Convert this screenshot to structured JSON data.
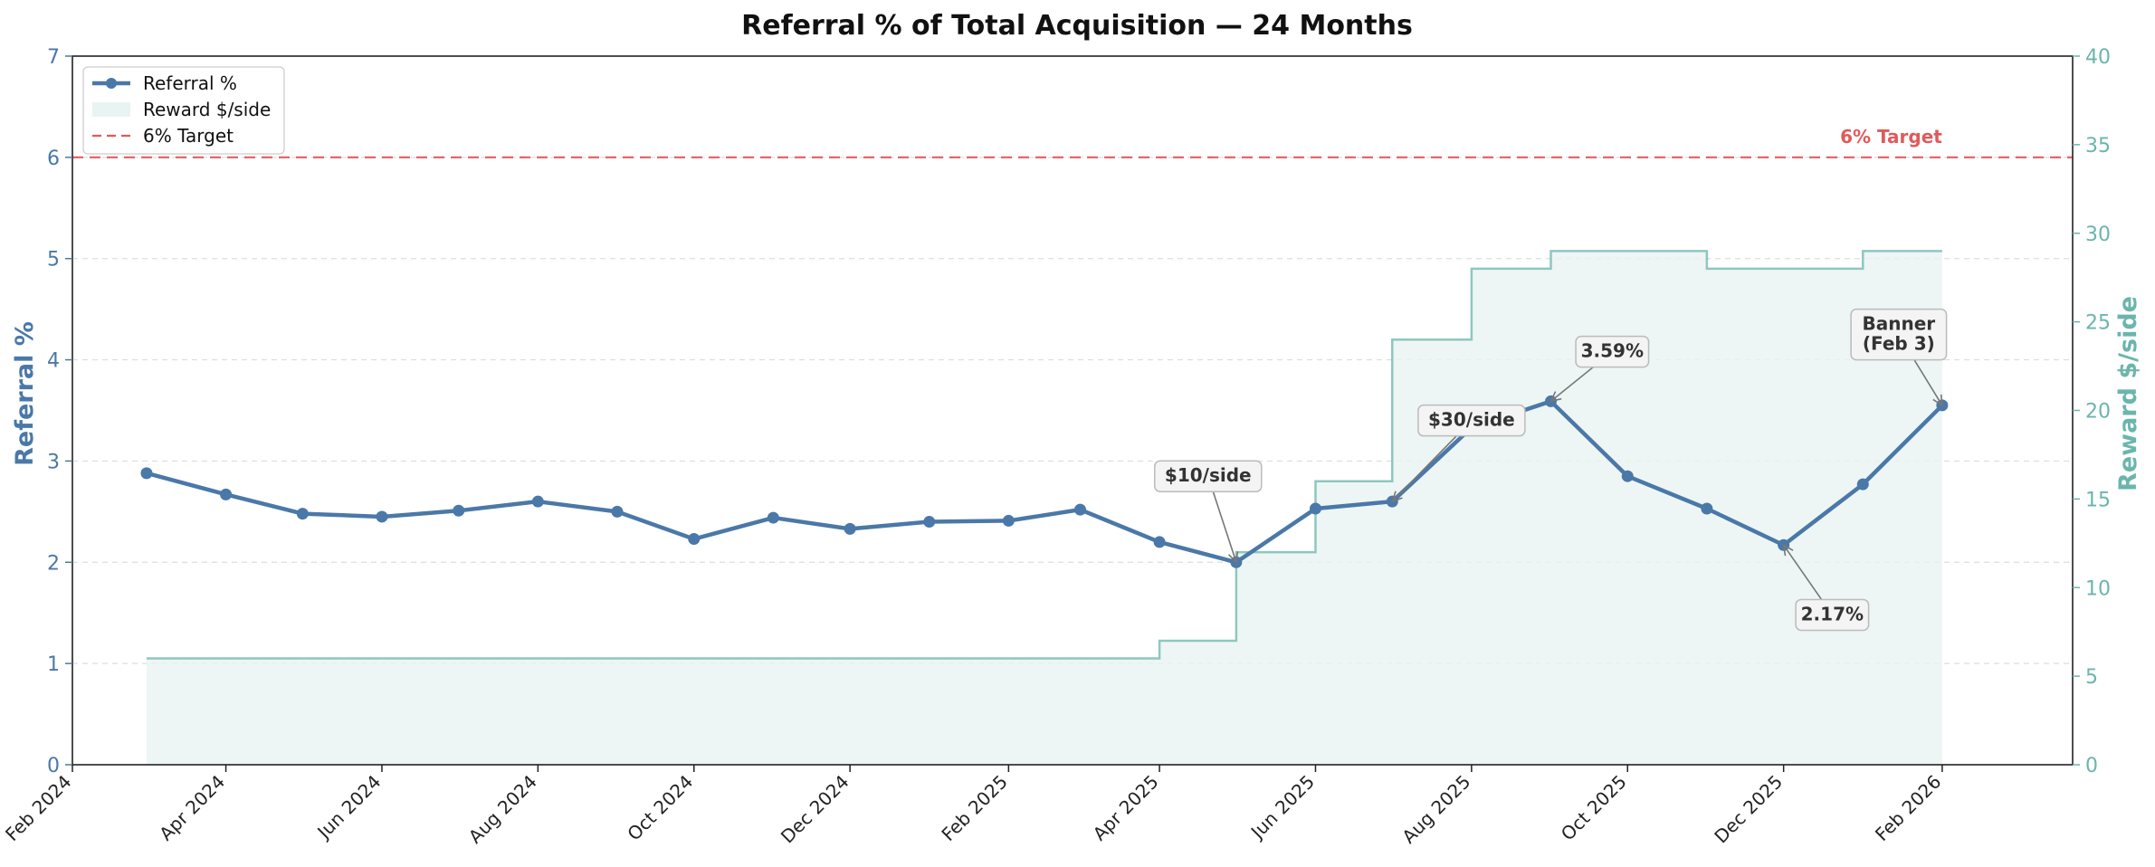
{
  "chart_data": {
    "type": "line",
    "title": "Referral % of Total Acquisition — 24 Months",
    "ylabel": "Referral %",
    "ylabel_right": "Reward $/side",
    "ylim": [
      0,
      7
    ],
    "ylim_right": [
      0,
      40
    ],
    "yticks": [
      "0",
      "1",
      "2",
      "3",
      "4",
      "5",
      "6",
      "7"
    ],
    "yticks_right": [
      "0",
      "5",
      "10",
      "15",
      "20",
      "25",
      "30",
      "35",
      "40"
    ],
    "xlim": [
      "2024-02-01",
      "2026-03-24"
    ],
    "xticks": [
      {
        "date": "2024-02-01",
        "label": "Feb 2024"
      },
      {
        "date": "2024-04-01",
        "label": "Apr 2024"
      },
      {
        "date": "2024-06-01",
        "label": "Jun 2024"
      },
      {
        "date": "2024-08-01",
        "label": "Aug 2024"
      },
      {
        "date": "2024-10-01",
        "label": "Oct 2024"
      },
      {
        "date": "2024-12-01",
        "label": "Dec 2024"
      },
      {
        "date": "2025-02-01",
        "label": "Feb 2025"
      },
      {
        "date": "2025-04-01",
        "label": "Apr 2025"
      },
      {
        "date": "2025-06-01",
        "label": "Jun 2025"
      },
      {
        "date": "2025-08-01",
        "label": "Aug 2025"
      },
      {
        "date": "2025-10-01",
        "label": "Oct 2025"
      },
      {
        "date": "2025-12-01",
        "label": "Dec 2025"
      },
      {
        "date": "2026-02-01",
        "label": "Feb 2026"
      }
    ],
    "x": [
      "2024-03-01",
      "2024-04-01",
      "2024-05-01",
      "2024-06-01",
      "2024-07-01",
      "2024-08-01",
      "2024-09-01",
      "2024-10-01",
      "2024-11-01",
      "2024-12-01",
      "2025-01-01",
      "2025-02-01",
      "2025-03-01",
      "2025-04-01",
      "2025-05-01",
      "2025-06-01",
      "2025-07-01",
      "2025-08-01",
      "2025-09-01",
      "2025-10-01",
      "2025-11-01",
      "2025-12-01",
      "2026-01-01",
      "2026-02-01"
    ],
    "series": [
      {
        "name": "Referral %",
        "axis": "left",
        "color": "#4a78a8",
        "values": [
          2.88,
          2.67,
          2.48,
          2.45,
          2.51,
          2.6,
          2.5,
          2.23,
          2.44,
          2.33,
          2.4,
          2.41,
          2.52,
          2.2,
          2.0,
          2.53,
          2.6,
          3.33,
          3.59,
          2.85,
          2.53,
          2.17,
          2.77,
          3.55
        ]
      },
      {
        "name": "Reward $/side",
        "axis": "right",
        "type": "step-area",
        "color": "#6bb5ad",
        "values": [
          6,
          6,
          6,
          6,
          6,
          6,
          6,
          6,
          6,
          6,
          6,
          6,
          6,
          7,
          12,
          16,
          24,
          28,
          29,
          29,
          28,
          28,
          29,
          29
        ]
      }
    ],
    "target": {
      "value": 6,
      "label": "6% Target",
      "legend": "6% Target",
      "color": "#e05a5a"
    },
    "legend": {
      "placement": "top-left",
      "entries": [
        "Referral %",
        "Reward $/side",
        "6% Target"
      ]
    },
    "annotations": [
      {
        "text": [
          "$10/side"
        ],
        "x": "2025-05-01",
        "y": 2.0,
        "text_x": "2025-04-20",
        "text_y": 2.85
      },
      {
        "text": [
          "$30/side"
        ],
        "x": "2025-07-01",
        "y": 2.6,
        "text_x": "2025-08-01",
        "text_y": 3.4
      },
      {
        "text": [
          "3.59%"
        ],
        "x": "2025-09-01",
        "y": 3.59,
        "text_x": "2025-09-25",
        "text_y": 4.08
      },
      {
        "text": [
          "2.17%"
        ],
        "x": "2025-12-01",
        "y": 2.17,
        "text_x": "2025-12-20",
        "text_y": 1.48
      },
      {
        "text": [
          "Banner",
          "(Feb 3)"
        ],
        "x": "2026-02-01",
        "y": 3.55,
        "text_x": "2026-01-15",
        "text_y": 4.25
      }
    ],
    "grid": "horizontal dashed",
    "colors": {
      "referral": "#4a78a8",
      "reward": "#6bb5ad",
      "reward_fill": "#e8f4f2",
      "target": "#e05a5a"
    }
  }
}
